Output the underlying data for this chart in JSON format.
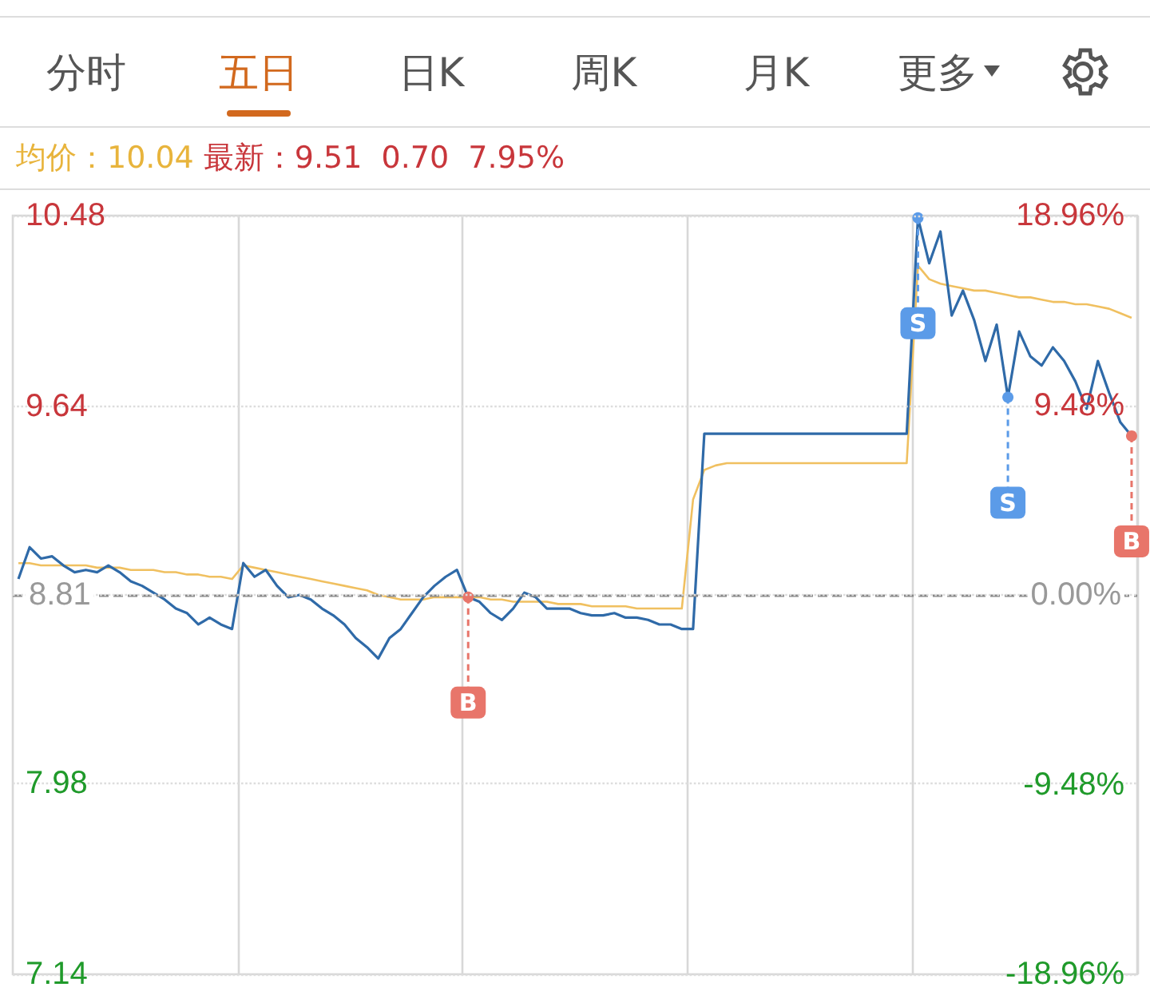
{
  "chart_data": {
    "type": "line",
    "annotations": [
      "分时",
      "五日",
      "日K",
      "周K",
      "月K",
      "更多",
      "均价：10.04",
      "最新：9.51  0.70  7.95%"
    ],
    "categories": [
      null,
      null,
      null,
      null,
      null,
      null,
      null,
      null,
      null,
      null,
      null,
      null,
      null,
      null,
      null,
      null,
      null,
      null,
      null,
      null,
      null,
      null,
      null,
      null,
      null,
      null,
      null,
      null,
      null,
      null,
      null,
      null,
      null,
      null,
      null,
      null,
      null,
      null,
      null,
      null,
      null,
      null,
      null,
      null,
      null,
      null,
      null,
      null,
      null,
      null,
      null,
      null,
      null,
      null,
      null,
      null,
      null,
      null,
      null,
      null,
      null,
      null,
      null,
      null,
      null,
      null,
      null,
      null,
      null,
      null,
      null,
      null,
      null,
      null,
      null,
      null,
      null,
      null,
      null,
      null,
      null,
      null,
      null,
      null,
      null,
      null,
      null,
      null,
      null,
      null,
      null,
      null,
      null,
      null,
      null,
      null,
      null,
      null,
      null,
      null
    ],
    "series": [
      {
        "color": "#2f6aa8",
        "values": [
          8.88,
          9.02,
          8.97,
          8.98,
          8.94,
          8.91,
          8.92,
          8.91,
          8.94,
          8.91,
          8.87,
          8.85,
          8.82,
          8.79,
          8.75,
          8.73,
          8.68,
          8.71,
          8.68,
          8.66,
          8.95,
          8.89,
          8.92,
          8.85,
          8.8,
          8.81,
          8.79,
          8.75,
          8.72,
          8.68,
          8.62,
          8.58,
          8.53,
          8.62,
          8.66,
          8.73,
          8.8,
          8.85,
          8.89,
          8.92,
          8.8,
          8.78,
          8.73,
          8.7,
          8.75,
          8.82,
          8.8,
          8.75,
          8.75,
          8.75,
          8.73,
          8.72,
          8.72,
          8.73,
          8.71,
          8.71,
          8.7,
          8.68,
          8.68,
          8.66,
          8.66,
          9.52,
          9.52,
          9.52,
          9.52,
          9.52,
          9.52,
          9.52,
          9.52,
          9.52,
          9.52,
          9.52,
          9.52,
          9.52,
          9.52,
          9.52,
          9.52,
          9.52,
          9.52,
          9.52,
          10.47,
          10.27,
          10.41,
          10.04,
          10.15,
          10.02,
          9.84,
          10.0,
          9.68,
          9.97,
          9.86,
          9.82,
          9.9,
          9.84,
          9.75,
          9.63,
          9.84,
          9.7,
          9.57,
          9.51
        ]
      },
      {
        "color": "#f0c060",
        "values": [
          8.95,
          8.95,
          8.94,
          8.94,
          8.94,
          8.94,
          8.94,
          8.93,
          8.93,
          8.93,
          8.92,
          8.92,
          8.92,
          8.91,
          8.91,
          8.9,
          8.9,
          8.89,
          8.89,
          8.88,
          8.94,
          8.93,
          8.92,
          8.91,
          8.9,
          8.89,
          8.88,
          8.87,
          8.86,
          8.85,
          8.84,
          8.83,
          8.81,
          8.8,
          8.79,
          8.79,
          8.79,
          8.8,
          8.8,
          8.8,
          8.8,
          8.8,
          8.79,
          8.79,
          8.78,
          8.78,
          8.78,
          8.78,
          8.77,
          8.77,
          8.77,
          8.76,
          8.76,
          8.76,
          8.76,
          8.75,
          8.75,
          8.75,
          8.75,
          8.75,
          9.23,
          9.36,
          9.38,
          9.39,
          9.39,
          9.39,
          9.39,
          9.39,
          9.39,
          9.39,
          9.39,
          9.39,
          9.39,
          9.39,
          9.39,
          9.39,
          9.39,
          9.39,
          9.39,
          9.39,
          10.26,
          10.2,
          10.18,
          10.17,
          10.16,
          10.15,
          10.15,
          10.14,
          10.13,
          10.12,
          10.12,
          10.11,
          10.1,
          10.1,
          10.09,
          10.09,
          10.08,
          10.07,
          10.05,
          10.03
        ]
      },
      {
        "type": "scatter",
        "marker": "circle",
        "colors": [
          null,
          null,
          null,
          null,
          null,
          null,
          null,
          null,
          null,
          null,
          null,
          null,
          null,
          null,
          null,
          null,
          null,
          null,
          null,
          null,
          null,
          null,
          null,
          null,
          null,
          null,
          null,
          null,
          null,
          null,
          null,
          null,
          null,
          null,
          null,
          null,
          null,
          null,
          null,
          null,
          "#e8756a",
          null,
          null,
          null,
          null,
          null,
          null,
          null,
          null,
          null,
          null,
          null,
          null,
          null,
          null,
          null,
          null,
          null,
          null,
          null,
          null,
          null,
          null,
          null,
          null,
          null,
          null,
          null,
          null,
          null,
          null,
          null,
          null,
          null,
          null,
          null,
          null,
          null,
          null,
          null,
          "#5b9be8",
          null,
          null,
          null,
          null,
          null,
          null,
          null,
          "#5b9be8",
          null,
          null,
          null,
          null,
          null,
          null,
          null,
          null,
          null,
          null,
          "#e8756a"
        ],
        "values": [
          null,
          null,
          null,
          null,
          null,
          null,
          null,
          null,
          null,
          null,
          null,
          null,
          null,
          null,
          null,
          null,
          null,
          null,
          null,
          null,
          null,
          null,
          null,
          null,
          null,
          null,
          null,
          null,
          null,
          null,
          null,
          null,
          null,
          null,
          null,
          null,
          null,
          null,
          null,
          null,
          8.8,
          null,
          null,
          null,
          null,
          null,
          null,
          null,
          null,
          null,
          null,
          null,
          null,
          null,
          null,
          null,
          null,
          null,
          null,
          null,
          null,
          null,
          null,
          null,
          null,
          null,
          null,
          null,
          null,
          null,
          null,
          null,
          null,
          null,
          null,
          null,
          null,
          null,
          null,
          null,
          10.47,
          null,
          null,
          null,
          null,
          null,
          null,
          null,
          9.68,
          null,
          null,
          null,
          null,
          null,
          null,
          null,
          null,
          null,
          null,
          9.51
        ],
        "value_labels": [
          null,
          null,
          null,
          null,
          null,
          null,
          null,
          null,
          null,
          null,
          null,
          null,
          null,
          null,
          null,
          null,
          null,
          null,
          null,
          null,
          null,
          null,
          null,
          null,
          null,
          null,
          null,
          null,
          null,
          null,
          null,
          null,
          null,
          null,
          null,
          null,
          null,
          null,
          null,
          null,
          "B",
          null,
          null,
          null,
          null,
          null,
          null,
          null,
          null,
          null,
          null,
          null,
          null,
          null,
          null,
          null,
          null,
          null,
          null,
          null,
          null,
          null,
          null,
          null,
          null,
          null,
          null,
          null,
          null,
          null,
          null,
          null,
          null,
          null,
          null,
          null,
          null,
          null,
          null,
          null,
          "S",
          null,
          null,
          null,
          null,
          null,
          null,
          null,
          "S",
          null,
          null,
          null,
          null,
          null,
          null,
          null,
          null,
          null,
          null,
          "B"
        ]
      }
    ],
    "ylim": [
      7.14,
      10.48
    ],
    "yticks": [
      7.14,
      7.98,
      8.81,
      9.64,
      10.48
    ],
    "y2lim": [
      -18.96,
      18.96
    ],
    "y2ticks": [
      {
        "value": -18.96,
        "label": "-18.96%"
      },
      {
        "value": -9.48,
        "label": "-9.48%"
      },
      {
        "value": 0,
        "label": "0.00%"
      },
      {
        "value": 9.48,
        "label": "9.48%"
      },
      {
        "value": 18.96,
        "label": "18.96%"
      }
    ],
    "ref_lines": [
      {
        "axis": "y",
        "value": 8.81,
        "label": null,
        "color": "#888888",
        "line_style": "dashed"
      }
    ],
    "grid": true,
    "marker": "none"
  }
}
